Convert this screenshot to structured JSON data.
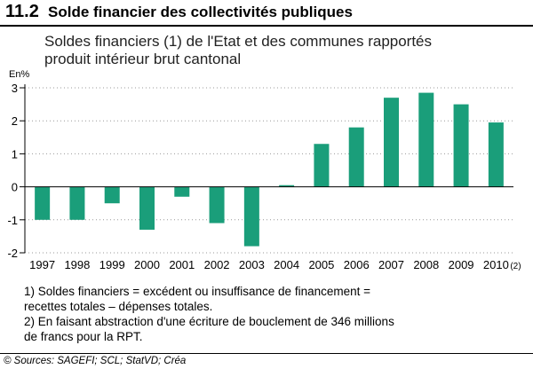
{
  "header": {
    "number": "11.2",
    "title": "Solde financier des collectivités publiques"
  },
  "subtitle": {
    "line1": "Soldes financiers (1) de l'Etat et des communes rapportés",
    "line2": "produit intérieur brut cantonal"
  },
  "colors": {
    "bar": "#1a9e7a",
    "grid": "#999999",
    "axis": "#000000"
  },
  "chart_data": {
    "type": "bar",
    "title": "Soldes financiers (1) de l'Etat et des communes rapportés produit intérieur brut cantonal",
    "ylabel": "En%",
    "xlabel": "",
    "categories": [
      "1997",
      "1998",
      "1999",
      "2000",
      "2001",
      "2002",
      "2003",
      "2004",
      "2005",
      "2006",
      "2007",
      "2008",
      "2009",
      "2010"
    ],
    "category_suffix": {
      "13": "(2)"
    },
    "values": [
      -1.0,
      -1.0,
      -0.5,
      -1.3,
      -0.3,
      -1.1,
      -1.8,
      0.05,
      1.3,
      1.8,
      2.7,
      2.85,
      2.5,
      1.95
    ],
    "ylim": [
      -2,
      3
    ],
    "yticks": [
      "3",
      "2",
      "1",
      "0",
      "-1",
      "-2"
    ],
    "ytick_values": [
      3,
      2,
      1,
      0,
      -1,
      -2
    ],
    "grid": "dotted horizontal"
  },
  "notes": {
    "note1_line1": "1) Soldes financiers = excédent ou insuffisance de financement =",
    "note1_line2": "recettes totales – dépenses totales.",
    "note2_line1": "2) En faisant abstraction d'une écriture de bouclement de 346 millions",
    "note2_line2": "de francs pour la RPT."
  },
  "source": "© Sources: SAGEFI; SCL; StatVD; Créa"
}
